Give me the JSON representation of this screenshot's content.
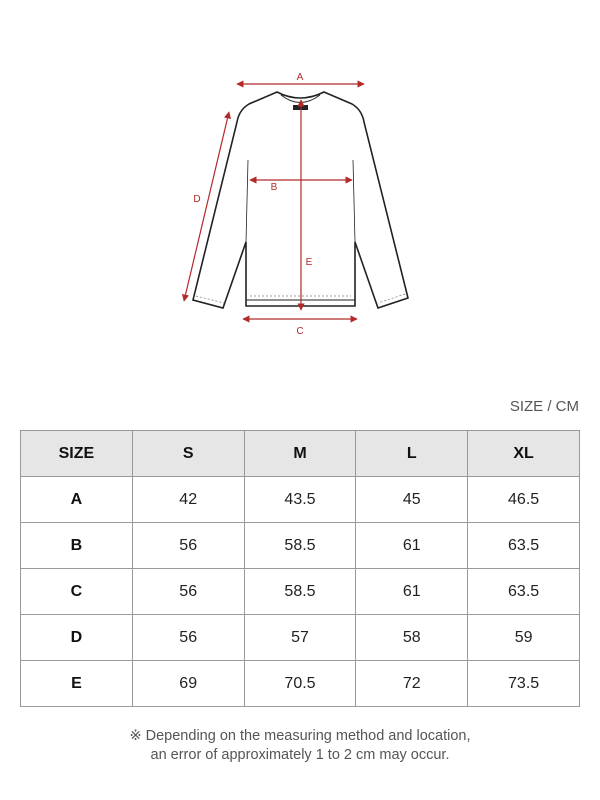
{
  "diagram": {
    "labels": {
      "a": "A",
      "b": "B",
      "c": "C",
      "d": "D",
      "e": "E"
    },
    "arrow_color": "#b22a2a"
  },
  "unit_label": "SIZE / CM",
  "table": {
    "headers": [
      "SIZE",
      "S",
      "M",
      "L",
      "XL"
    ],
    "rows": [
      {
        "label": "A",
        "values": [
          "42",
          "43.5",
          "45",
          "46.5"
        ]
      },
      {
        "label": "B",
        "values": [
          "56",
          "58.5",
          "61",
          "63.5"
        ]
      },
      {
        "label": "C",
        "values": [
          "56",
          "58.5",
          "61",
          "63.5"
        ]
      },
      {
        "label": "D",
        "values": [
          "56",
          "57",
          "58",
          "59"
        ]
      },
      {
        "label": "E",
        "values": [
          "69",
          "70.5",
          "72",
          "73.5"
        ]
      }
    ]
  },
  "note": {
    "line1": "※ Depending on the measuring method and location,",
    "line2": "an error of approximately 1 to 2 cm may occur."
  }
}
